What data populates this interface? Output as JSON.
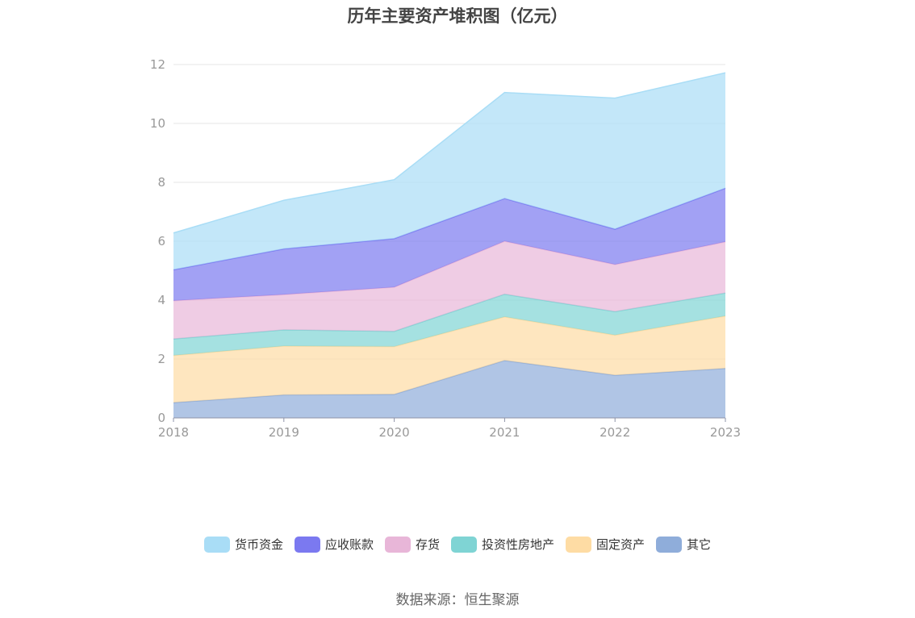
{
  "colors": {
    "货币资金": "#a9ddf6",
    "应收账款": "#7b79f0",
    "存货": "#e8b6d8",
    "投资性房地产": "#7fd4d4",
    "固定资产": "#fedca4",
    "其它": "#8fadda"
  },
  "source": "数据来源：恒生聚源",
  "chart_data": {
    "type": "area",
    "stacked": true,
    "title": "历年主要资产堆积图（亿元）",
    "categories": [
      "2018",
      "2019",
      "2020",
      "2021",
      "2022",
      "2023"
    ],
    "ylim": [
      0,
      12
    ],
    "yticks": [
      0,
      2,
      4,
      6,
      8,
      10,
      12
    ],
    "grid": true,
    "legend_position": "bottom",
    "series": [
      {
        "name": "其它",
        "values": [
          0.52,
          0.78,
          0.8,
          1.95,
          1.45,
          1.68
        ]
      },
      {
        "name": "固定资产",
        "values": [
          1.6,
          1.66,
          1.62,
          1.48,
          1.36,
          1.78
        ]
      },
      {
        "name": "投资性房地产",
        "values": [
          0.56,
          0.55,
          0.52,
          0.77,
          0.8,
          0.78
        ]
      },
      {
        "name": "存货",
        "values": [
          1.3,
          1.2,
          1.5,
          1.8,
          1.6,
          1.74
        ]
      },
      {
        "name": "应收账款",
        "values": [
          1.05,
          1.55,
          1.65,
          1.45,
          1.2,
          1.82
        ]
      },
      {
        "name": "货币资金",
        "values": [
          1.25,
          1.65,
          2.0,
          3.6,
          4.45,
          3.92
        ]
      }
    ],
    "legend_order": [
      "货币资金",
      "应收账款",
      "存货",
      "投资性房地产",
      "固定资产",
      "其它"
    ]
  }
}
